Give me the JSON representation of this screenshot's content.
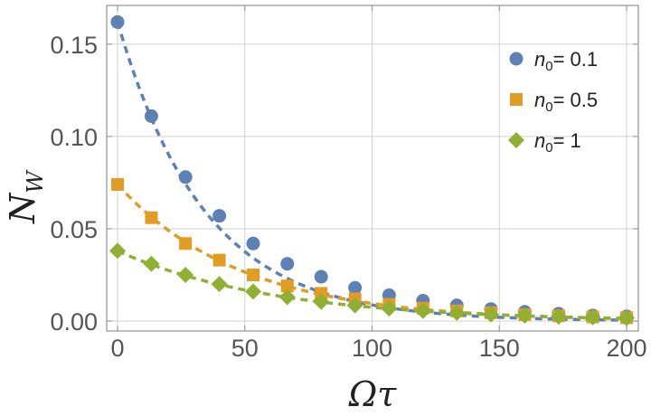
{
  "chart_data": {
    "type": "scatter",
    "title": "",
    "xlabel": "Ωτ",
    "ylabel": "N_W",
    "ylabel_main": "N",
    "ylabel_sub": "W",
    "xlim": [
      0,
      200
    ],
    "ylim": [
      0,
      0.17
    ],
    "xticks": [
      0,
      50,
      100,
      150,
      200
    ],
    "xtick_labels": [
      "0",
      "50",
      "100",
      "150",
      "200"
    ],
    "yticks": [
      0.0,
      0.05,
      0.1,
      0.15
    ],
    "ytick_labels": [
      "0.00",
      "0.05",
      "0.10",
      "0.15"
    ],
    "grid": true,
    "legend_position": "top-right",
    "x": [
      0,
      13.3,
      26.7,
      40,
      53.3,
      66.7,
      80,
      93.3,
      106.7,
      120,
      133.3,
      146.7,
      160,
      173.3,
      186.7,
      200
    ],
    "series": [
      {
        "name": "n0 = 0.1",
        "legend_main": "n",
        "legend_sub": "0",
        "legend_value": "= 0.1",
        "marker": "circle",
        "color": "#5e81b5",
        "values": [
          0.162,
          0.111,
          0.078,
          0.057,
          0.042,
          0.031,
          0.024,
          0.018,
          0.014,
          0.011,
          0.0085,
          0.0065,
          0.005,
          0.004,
          0.003,
          0.0025
        ],
        "fit_amplitude": 0.162,
        "fit_decay": 0.0292,
        "fit_offset": 0.0
      },
      {
        "name": "n0 = 0.5",
        "legend_main": "n",
        "legend_sub": "0",
        "legend_value": "= 0.5",
        "marker": "square",
        "color": "#e19c24",
        "values": [
          0.074,
          0.056,
          0.042,
          0.033,
          0.025,
          0.019,
          0.015,
          0.012,
          0.009,
          0.007,
          0.0055,
          0.0045,
          0.0035,
          0.0028,
          0.0022,
          0.0018
        ],
        "fit_amplitude": 0.074,
        "fit_decay": 0.0205,
        "fit_offset": 0.0
      },
      {
        "name": "n0 = 1",
        "legend_main": "n",
        "legend_sub": "0",
        "legend_value": "= 1",
        "marker": "diamond",
        "color": "#8fb032",
        "values": [
          0.038,
          0.031,
          0.025,
          0.02,
          0.016,
          0.013,
          0.0105,
          0.0085,
          0.0068,
          0.0055,
          0.0045,
          0.0036,
          0.003,
          0.0024,
          0.002,
          0.0016
        ],
        "fit_amplitude": 0.038,
        "fit_decay": 0.0163,
        "fit_offset": 0.0
      }
    ]
  }
}
